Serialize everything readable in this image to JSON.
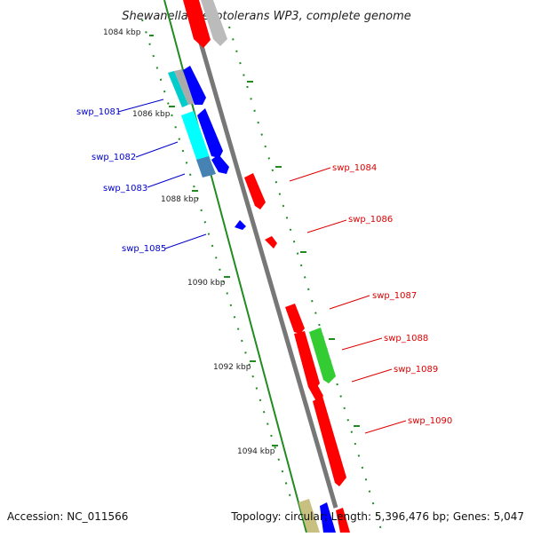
{
  "title": "Shewanella piezotolerans WP3, complete genome",
  "footer": {
    "accession": "Accession: NC_011566",
    "summary": "Topology: circular; Length: 5,396,476 bp; Genes: 5,047"
  },
  "ticks": [
    "1084 kbp",
    "1086 kbp",
    "1088 kbp",
    "1090 kbp",
    "1092 kbp",
    "1094 kbp"
  ],
  "genes_left": [
    "swp_1081",
    "swp_1082",
    "swp_1083",
    "swp_1085"
  ],
  "genes_right": [
    "swp_1084",
    "swp_1086",
    "swp_1087",
    "swp_1088",
    "swp_1089",
    "swp_1090"
  ],
  "colors": {
    "reverse_strand": "#0000ff",
    "forward_strand": "#ff0000",
    "cyan_feature": "#00ffff",
    "steel_feature": "#4682b4",
    "green_feature": "#33cc33",
    "grey_feature": "#bbbbbb",
    "khaki_feature": "#c8c080",
    "tick_dots": "#228b22",
    "backbone": "#777777"
  }
}
